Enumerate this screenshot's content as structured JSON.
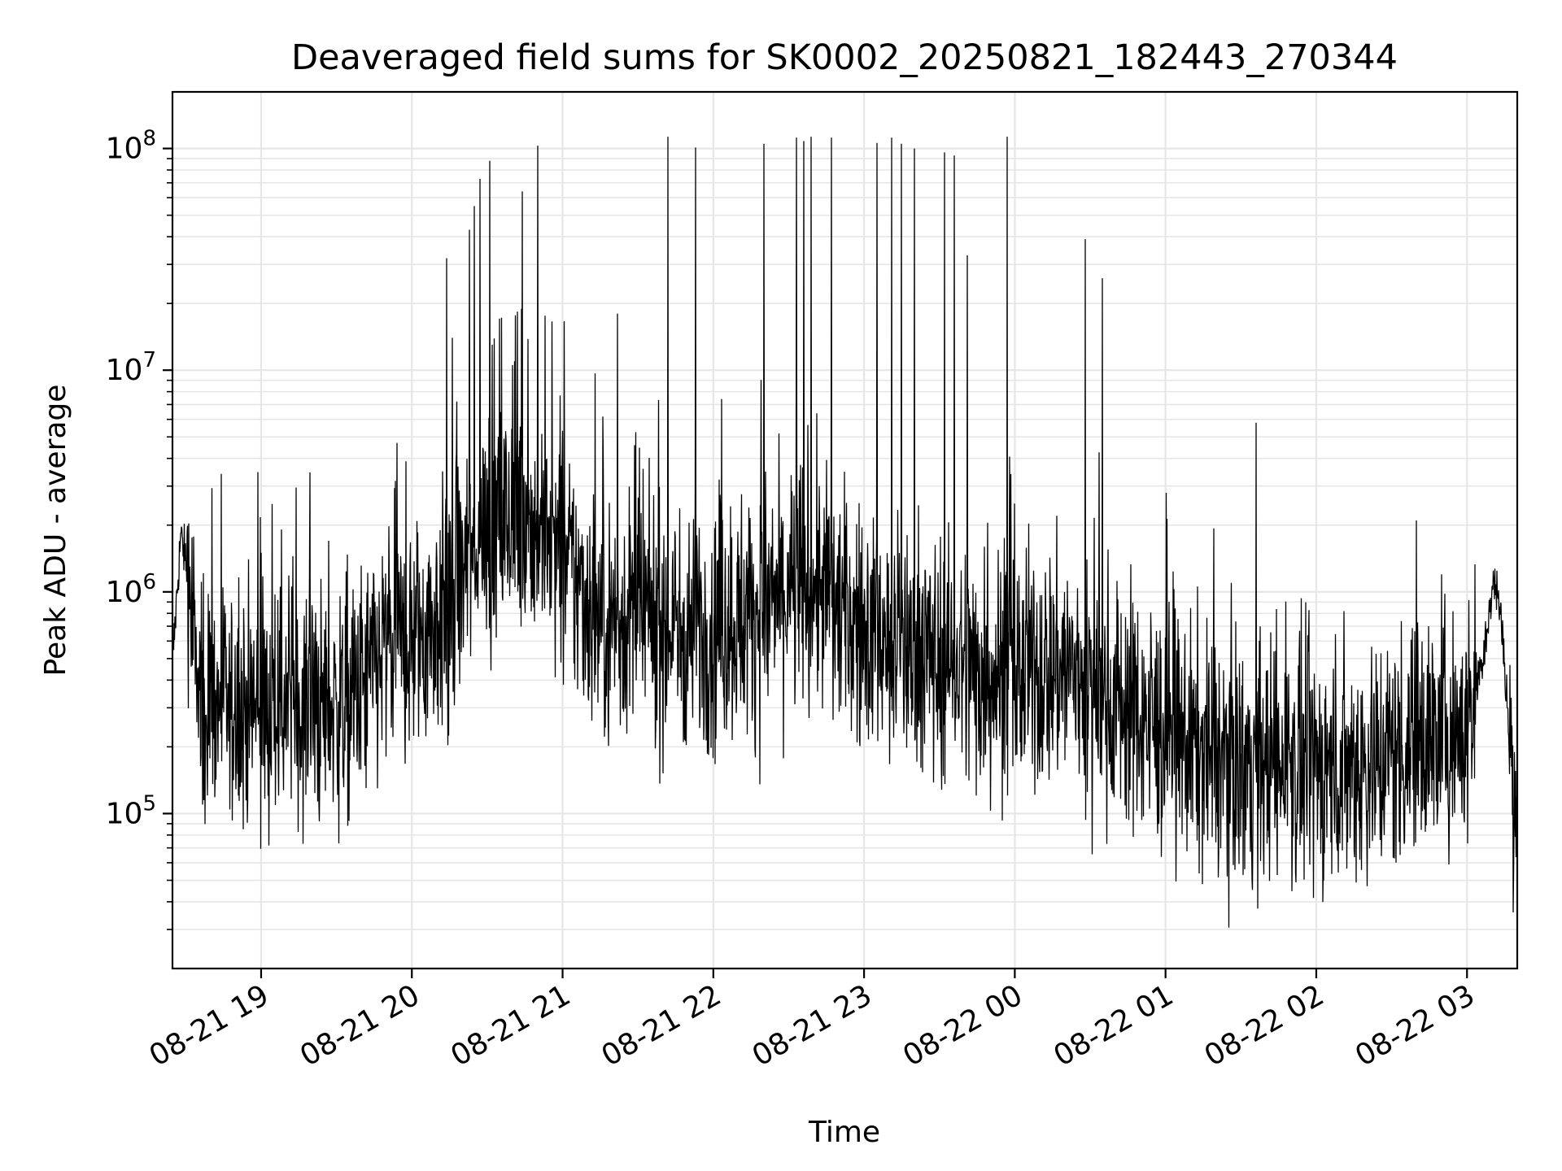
{
  "chart_data": {
    "type": "line",
    "title": "Deaveraged field sums for SK0002_20250821_182443_270344",
    "xlabel": "Time",
    "ylabel": "Peak ADU - average",
    "x_scale": "time",
    "y_scale": "log",
    "xlim": [
      "2025-08-21 18:24:43",
      "2025-08-22 03:20:00"
    ],
    "ylim": [
      20000,
      180000000
    ],
    "x_ticks": [
      {
        "t": "2025-08-21 19:00",
        "label": "08-21 19"
      },
      {
        "t": "2025-08-21 20:00",
        "label": "08-21 20"
      },
      {
        "t": "2025-08-21 21:00",
        "label": "08-21 21"
      },
      {
        "t": "2025-08-21 22:00",
        "label": "08-21 22"
      },
      {
        "t": "2025-08-21 23:00",
        "label": "08-21 23"
      },
      {
        "t": "2025-08-22 00:00",
        "label": "08-22 00"
      },
      {
        "t": "2025-08-22 01:00",
        "label": "08-22 01"
      },
      {
        "t": "2025-08-22 02:00",
        "label": "08-22 02"
      },
      {
        "t": "2025-08-22 03:00",
        "label": "08-22 03"
      }
    ],
    "y_ticks": [
      {
        "value": 100000,
        "base": "10",
        "exp": "5"
      },
      {
        "value": 1000000,
        "base": "10",
        "exp": "6"
      },
      {
        "value": 10000000,
        "base": "10",
        "exp": "7"
      },
      {
        "value": 100000000,
        "base": "10",
        "exp": "8"
      }
    ],
    "grid": true,
    "line_color": "#000000",
    "grid_color": "#e6e6e6",
    "series": [
      {
        "baseline": [
          [
            "2025-08-21 18:24",
            350000
          ],
          [
            "2025-08-21 18:28",
            1800000
          ],
          [
            "2025-08-21 18:31",
            1200000
          ],
          [
            "2025-08-21 18:35",
            350000
          ],
          [
            "2025-08-21 18:45",
            280000
          ],
          [
            "2025-08-21 19:00",
            300000
          ],
          [
            "2025-08-21 19:15",
            310000
          ],
          [
            "2025-08-21 19:30",
            290000
          ],
          [
            "2025-08-21 19:40",
            360000
          ],
          [
            "2025-08-21 19:50",
            550000
          ],
          [
            "2025-08-21 20:00",
            600000
          ],
          [
            "2025-08-21 20:15",
            850000
          ],
          [
            "2025-08-21 20:30",
            2000000
          ],
          [
            "2025-08-21 20:45",
            2100000
          ],
          [
            "2025-08-21 21:00",
            1400000
          ],
          [
            "2025-08-21 21:15",
            750000
          ],
          [
            "2025-08-21 21:30",
            800000
          ],
          [
            "2025-08-21 21:45",
            650000
          ],
          [
            "2025-08-21 22:00",
            700000
          ],
          [
            "2025-08-21 22:20",
            850000
          ],
          [
            "2025-08-21 22:40",
            1100000
          ],
          [
            "2025-08-21 23:00",
            650000
          ],
          [
            "2025-08-21 23:20",
            550000
          ],
          [
            "2025-08-21 23:40",
            450000
          ],
          [
            "2025-08-22 00:00",
            420000
          ],
          [
            "2025-08-22 00:20",
            460000
          ],
          [
            "2025-08-22 00:40",
            330000
          ],
          [
            "2025-08-22 01:00",
            230000
          ],
          [
            "2025-08-22 01:20",
            180000
          ],
          [
            "2025-08-22 01:40",
            170000
          ],
          [
            "2025-08-22 02:00",
            160000
          ],
          [
            "2025-08-22 02:20",
            170000
          ],
          [
            "2025-08-22 02:40",
            210000
          ],
          [
            "2025-08-22 03:00",
            240000
          ],
          [
            "2025-08-22 03:06",
            500000
          ],
          [
            "2025-08-22 03:11",
            1150000
          ],
          [
            "2025-08-22 03:14",
            700000
          ],
          [
            "2025-08-22 03:17",
            200000
          ],
          [
            "2025-08-22 03:20",
            75000
          ]
        ],
        "spikes": [
          [
            "2025-08-21 18:44",
            3400000
          ],
          [
            "2025-08-21 19:00",
            1500000
          ],
          [
            "2025-08-21 19:27",
            1700000
          ],
          [
            "2025-08-21 19:54",
            4700000
          ],
          [
            "2025-08-21 20:14",
            32000000
          ],
          [
            "2025-08-21 20:16",
            14000000
          ],
          [
            "2025-08-21 20:23",
            43000000
          ],
          [
            "2025-08-21 20:25",
            55000000
          ],
          [
            "2025-08-21 20:27",
            73000000
          ],
          [
            "2025-08-21 20:31",
            88000000
          ],
          [
            "2025-08-21 20:44",
            64000000
          ],
          [
            "2025-08-21 20:50",
            103000000
          ],
          [
            "2025-08-21 21:22",
            18000000
          ],
          [
            "2025-08-21 21:42",
            113000000
          ],
          [
            "2025-08-21 21:53",
            101000000
          ],
          [
            "2025-08-21 22:20",
            105000000
          ],
          [
            "2025-08-21 22:33",
            112000000
          ],
          [
            "2025-08-21 22:36",
            108000000
          ],
          [
            "2025-08-21 22:39",
            113000000
          ],
          [
            "2025-08-21 22:47",
            112000000
          ],
          [
            "2025-08-21 23:05",
            106000000
          ],
          [
            "2025-08-21 23:11",
            112000000
          ],
          [
            "2025-08-21 23:15",
            105000000
          ],
          [
            "2025-08-21 23:20",
            100000000
          ],
          [
            "2025-08-21 23:32",
            96000000
          ],
          [
            "2025-08-21 23:36",
            93000000
          ],
          [
            "2025-08-21 23:41",
            33000000
          ],
          [
            "2025-08-21 23:57",
            113000000
          ],
          [
            "2025-08-22 00:28",
            39000000
          ],
          [
            "2025-08-22 00:35",
            26000000
          ],
          [
            "2025-08-22 01:36",
            5800000
          ],
          [
            "2025-08-22 02:40",
            2100000
          ],
          [
            "2025-08-22 02:50",
            1200000
          ]
        ]
      }
    ]
  }
}
